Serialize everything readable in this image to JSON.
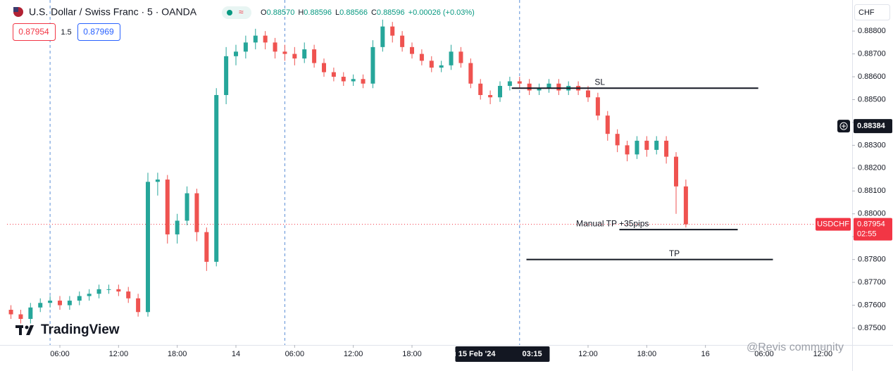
{
  "chart_data": {
    "type": "candlestick",
    "title": "U.S. Dollar / Swiss Franc · 5 · OANDA",
    "ohlc_legend": [
      {
        "label": "O",
        "value": "0.88570"
      },
      {
        "label": "H",
        "value": "0.88596"
      },
      {
        "label": "L",
        "value": "0.88566"
      },
      {
        "label": "C",
        "value": "0.88596"
      }
    ],
    "change": "+0.00026 (+0.03%)",
    "bid": "0.87954",
    "spread": "1.5",
    "ask": "0.87969",
    "currency": "CHF",
    "symbol": "USDCHF",
    "last_price": {
      "value": 0.87954,
      "label": "0.87954"
    },
    "countdown": "02:55",
    "crosshair": {
      "price": {
        "value": 0.88384,
        "label": "0.88384"
      },
      "time": {
        "value": 51.25,
        "date": "Thu 15 Feb '24",
        "label": "03:15"
      }
    },
    "up_color": "#26a69a",
    "down_color": "#ef5350",
    "grid": false,
    "xlim": [
      0.6,
      87.0
    ],
    "ylim": [
      0.87426,
      0.88936
    ],
    "xticks": [
      {
        "value": 6,
        "label": "06:00"
      },
      {
        "value": 12,
        "label": "12:00"
      },
      {
        "value": 18,
        "label": "18:00"
      },
      {
        "value": 24,
        "label": "14"
      },
      {
        "value": 30,
        "label": "06:00"
      },
      {
        "value": 36,
        "label": "12:00"
      },
      {
        "value": 42,
        "label": "18:00"
      },
      {
        "value": 60,
        "label": "12:00"
      },
      {
        "value": 66,
        "label": "18:00"
      },
      {
        "value": 72,
        "label": "16"
      },
      {
        "value": 78,
        "label": "06:00"
      },
      {
        "value": 84,
        "label": "12:00"
      }
    ],
    "yticks": [
      {
        "value": 0.875,
        "label": "0.87500"
      },
      {
        "value": 0.876,
        "label": "0.87600"
      },
      {
        "value": 0.877,
        "label": "0.87700"
      },
      {
        "value": 0.878,
        "label": "0.87800"
      },
      {
        "value": 0.879,
        "label": "0.87900"
      },
      {
        "value": 0.88,
        "label": "0.88000"
      },
      {
        "value": 0.881,
        "label": "0.88100"
      },
      {
        "value": 0.882,
        "label": "0.88200"
      },
      {
        "value": 0.883,
        "label": "0.88300"
      },
      {
        "value": 0.884,
        "label": "0.88400"
      },
      {
        "value": 0.885,
        "label": "0.88500"
      },
      {
        "value": 0.886,
        "label": "0.88600"
      },
      {
        "value": 0.887,
        "label": "0.88700"
      },
      {
        "value": 0.888,
        "label": "0.88800"
      }
    ],
    "session_lines": [
      5,
      29,
      53
    ],
    "levels": [
      {
        "name": "SL",
        "price": 0.8855,
        "x": [
          52.2,
          77.4
        ]
      },
      {
        "name": "Manual TP +35pips",
        "price": 0.87931,
        "x": [
          63.2,
          75.3
        ]
      },
      {
        "name": "TP",
        "price": 0.878,
        "x": [
          53.7,
          78.9
        ]
      }
    ],
    "x": [
      1,
      2,
      3,
      4,
      5,
      6,
      7,
      8,
      9,
      10,
      11,
      12,
      13,
      14,
      15,
      16,
      17,
      18,
      19,
      20,
      21,
      22,
      23,
      24,
      25,
      26,
      27,
      28,
      29,
      30,
      31,
      32,
      33,
      34,
      35,
      36,
      37,
      38,
      39,
      40,
      41,
      42,
      43,
      44,
      45,
      46,
      47,
      48,
      49,
      50,
      51,
      52,
      53,
      54,
      55,
      56,
      57,
      58,
      59,
      60,
      61,
      62,
      63,
      64,
      65,
      66,
      67,
      68,
      69,
      70
    ],
    "open": [
      0.8758,
      0.8756,
      0.8754,
      0.8759,
      0.8761,
      0.8762,
      0.876,
      0.8762,
      0.8764,
      0.8765,
      0.8767,
      0.8767,
      0.8766,
      0.8763,
      0.8757,
      0.8814,
      0.8815,
      0.8791,
      0.8797,
      0.8809,
      0.8792,
      0.8779,
      0.8852,
      0.8869,
      0.8871,
      0.8875,
      0.8878,
      0.8875,
      0.8871,
      0.887,
      0.8868,
      0.8872,
      0.8866,
      0.8862,
      0.886,
      0.8858,
      0.8859,
      0.8857,
      0.8873,
      0.8882,
      0.8878,
      0.8873,
      0.887,
      0.8867,
      0.8864,
      0.8865,
      0.8871,
      0.8866,
      0.8857,
      0.8852,
      0.8851,
      0.8856,
      0.8858,
      0.8857,
      0.8854,
      0.8855,
      0.8857,
      0.8854,
      0.8856,
      0.8854,
      0.8851,
      0.8843,
      0.8835,
      0.883,
      0.8826,
      0.8832,
      0.8828,
      0.8832,
      0.8825,
      0.8812
    ],
    "high": [
      0.876,
      0.8758,
      0.8761,
      0.8763,
      0.8764,
      0.8764,
      0.8764,
      0.8766,
      0.8767,
      0.8769,
      0.8769,
      0.8769,
      0.8768,
      0.8765,
      0.8818,
      0.8818,
      0.8817,
      0.88,
      0.8812,
      0.8811,
      0.8794,
      0.8855,
      0.8873,
      0.8874,
      0.8878,
      0.8881,
      0.888,
      0.8877,
      0.8874,
      0.8873,
      0.8875,
      0.8874,
      0.8868,
      0.8864,
      0.8862,
      0.8861,
      0.8861,
      0.8876,
      0.8885,
      0.8884,
      0.888,
      0.8875,
      0.8872,
      0.8869,
      0.8867,
      0.8874,
      0.8873,
      0.8868,
      0.8859,
      0.8854,
      0.8858,
      0.886,
      0.886,
      0.8859,
      0.8857,
      0.8859,
      0.8859,
      0.8858,
      0.8858,
      0.8856,
      0.8853,
      0.8845,
      0.8837,
      0.8832,
      0.8834,
      0.8834,
      0.8834,
      0.8834,
      0.8827,
      0.8815
    ],
    "low": [
      0.8754,
      0.8752,
      0.8752,
      0.8757,
      0.8759,
      0.8758,
      0.8758,
      0.876,
      0.8762,
      0.8763,
      0.8765,
      0.8764,
      0.8761,
      0.8755,
      0.8755,
      0.8808,
      0.8787,
      0.8787,
      0.8795,
      0.8788,
      0.8775,
      0.8777,
      0.8848,
      0.8865,
      0.8868,
      0.8872,
      0.8872,
      0.8868,
      0.8867,
      0.8865,
      0.8866,
      0.8864,
      0.886,
      0.8858,
      0.8856,
      0.8856,
      0.8855,
      0.8855,
      0.8871,
      0.8875,
      0.8871,
      0.8868,
      0.8865,
      0.8862,
      0.8862,
      0.8863,
      0.8864,
      0.8855,
      0.885,
      0.8848,
      0.8849,
      0.8854,
      0.8855,
      0.8852,
      0.8852,
      0.8853,
      0.8852,
      0.8852,
      0.8852,
      0.8849,
      0.8841,
      0.8832,
      0.8827,
      0.8823,
      0.8824,
      0.8825,
      0.8826,
      0.8822,
      0.88,
      0.8794
    ],
    "close": [
      0.8756,
      0.8754,
      0.8759,
      0.8761,
      0.8762,
      0.876,
      0.8762,
      0.8764,
      0.8765,
      0.8767,
      0.8767,
      0.8766,
      0.8763,
      0.8757,
      0.8814,
      0.8815,
      0.8791,
      0.8797,
      0.8809,
      0.8792,
      0.8779,
      0.8852,
      0.8869,
      0.8871,
      0.8875,
      0.8878,
      0.8875,
      0.8871,
      0.887,
      0.8868,
      0.8872,
      0.8866,
      0.8862,
      0.886,
      0.8858,
      0.8859,
      0.8857,
      0.8873,
      0.8882,
      0.8878,
      0.8873,
      0.887,
      0.8867,
      0.8864,
      0.8865,
      0.8871,
      0.8866,
      0.8857,
      0.8852,
      0.8851,
      0.8856,
      0.8858,
      0.8857,
      0.8854,
      0.8855,
      0.8857,
      0.8854,
      0.8856,
      0.8854,
      0.8851,
      0.8843,
      0.8835,
      0.883,
      0.8826,
      0.8832,
      0.8828,
      0.8832,
      0.8825,
      0.8812,
      0.87954
    ],
    "brand": "TradingView",
    "watermark": "@Revis community"
  }
}
